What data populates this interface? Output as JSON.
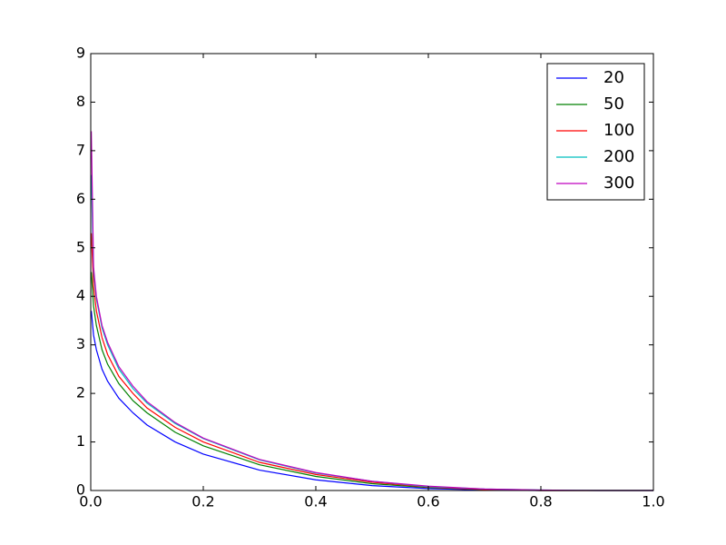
{
  "chart_data": {
    "type": "line",
    "x": [
      0.001,
      0.005,
      0.01,
      0.02,
      0.03,
      0.05,
      0.075,
      0.1,
      0.15,
      0.2,
      0.3,
      0.4,
      0.5,
      0.6,
      0.7,
      0.8,
      0.9,
      1.0
    ],
    "series": [
      {
        "name": "20",
        "color": "#0000ff",
        "values": [
          3.7,
          3.2,
          2.9,
          2.5,
          2.25,
          1.9,
          1.6,
          1.35,
          1.0,
          0.75,
          0.42,
          0.22,
          0.1,
          0.04,
          0.01,
          0.0,
          0.0,
          0.0
        ]
      },
      {
        "name": "50",
        "color": "#008000",
        "values": [
          4.5,
          3.8,
          3.4,
          2.9,
          2.6,
          2.2,
          1.85,
          1.6,
          1.2,
          0.92,
          0.53,
          0.29,
          0.14,
          0.06,
          0.02,
          0.0,
          0.0,
          0.0
        ]
      },
      {
        "name": "100",
        "color": "#ff0000",
        "values": [
          5.3,
          4.2,
          3.7,
          3.15,
          2.8,
          2.35,
          2.0,
          1.7,
          1.3,
          1.0,
          0.58,
          0.33,
          0.17,
          0.07,
          0.02,
          0.0,
          0.0,
          0.0
        ]
      },
      {
        "name": "200",
        "color": "#00bfbf",
        "values": [
          6.5,
          4.5,
          3.95,
          3.35,
          3.0,
          2.5,
          2.1,
          1.8,
          1.38,
          1.07,
          0.63,
          0.36,
          0.19,
          0.08,
          0.03,
          0.01,
          0.0,
          0.0
        ]
      },
      {
        "name": "300",
        "color": "#bf00bf",
        "values": [
          7.4,
          4.6,
          4.0,
          3.4,
          3.05,
          2.55,
          2.15,
          1.83,
          1.4,
          1.08,
          0.64,
          0.37,
          0.19,
          0.09,
          0.03,
          0.01,
          0.0,
          0.0
        ]
      }
    ],
    "xlim": [
      0,
      1
    ],
    "ylim": [
      0,
      9
    ],
    "xticks": [
      {
        "value": 0,
        "label": "0.0"
      },
      0.2,
      0.4,
      0.6,
      0.8,
      {
        "value": 1,
        "label": "1.0"
      }
    ],
    "yticks": [
      0,
      1,
      2,
      3,
      4,
      5,
      6,
      7,
      8,
      9
    ],
    "legend": "upper right"
  }
}
